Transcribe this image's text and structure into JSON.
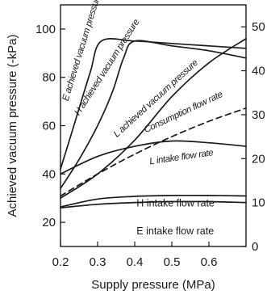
{
  "chart_data": {
    "type": "line",
    "title": "",
    "xlabel": "Supply pressure (MPa)",
    "ylabel": "Achieved vacuum pressure (-kPa)",
    "xlim": [
      0.2,
      0.7
    ],
    "ylim": [
      10,
      110
    ],
    "y2lim": [
      0,
      55
    ],
    "x_ticks": [
      "0.2",
      "0.3",
      "0.4",
      "0.5",
      "0.6"
    ],
    "y_ticks": [
      "20",
      "40",
      "60",
      "80",
      "100"
    ],
    "y2_ticks": [
      "0",
      "10",
      "20",
      "30",
      "40",
      "50"
    ],
    "grid": false,
    "series": [
      {
        "name": "E achieved vacuum pressure",
        "axis": "left",
        "style": "solid",
        "x": [
          0.2,
          0.24,
          0.28,
          0.31,
          0.4,
          0.5,
          0.6,
          0.7
        ],
        "y": [
          42,
          62,
          82,
          95,
          95,
          94,
          93,
          92
        ]
      },
      {
        "name": "H achieved vacuum pressure",
        "axis": "left",
        "style": "solid",
        "x": [
          0.2,
          0.25,
          0.3,
          0.34,
          0.37,
          0.4,
          0.5,
          0.6,
          0.7
        ],
        "y": [
          34,
          46,
          60,
          74,
          88,
          95,
          93,
          91,
          88
        ]
      },
      {
        "name": "L achieved vacuum pressure",
        "axis": "left",
        "style": "solid",
        "x": [
          0.2,
          0.3,
          0.4,
          0.5,
          0.6,
          0.7
        ],
        "y": [
          30,
          40,
          54,
          72,
          86,
          96
        ]
      },
      {
        "name": "Consumption flow rate",
        "axis": "right",
        "style": "dashed",
        "x": [
          0.2,
          0.3,
          0.4,
          0.5,
          0.6,
          0.7
        ],
        "y": [
          11.5,
          16.5,
          21.0,
          25.0,
          28.5,
          31.5
        ]
      },
      {
        "name": "L intake flow rate",
        "axis": "right",
        "style": "solid",
        "x": [
          0.2,
          0.3,
          0.4,
          0.5,
          0.6,
          0.7
        ],
        "y": [
          16.5,
          20.5,
          22.8,
          24.0,
          23.6,
          22.8
        ]
      },
      {
        "name": "H intake flow rate",
        "axis": "right",
        "style": "solid",
        "x": [
          0.2,
          0.3,
          0.4,
          0.5,
          0.6,
          0.7
        ],
        "y": [
          9.0,
          10.8,
          11.4,
          11.6,
          11.6,
          11.5
        ]
      },
      {
        "name": "E intake flow rate",
        "axis": "right",
        "style": "solid",
        "x": [
          0.2,
          0.3,
          0.4,
          0.5,
          0.6,
          0.7
        ],
        "y": [
          8.8,
          9.6,
          10.0,
          10.2,
          10.2,
          10.0
        ]
      }
    ],
    "annotations": [
      {
        "text": "E achieved vacuum pressure",
        "style": "italic",
        "x": 0.22,
        "y": 70
      },
      {
        "text": "H achieved vacuum pressure",
        "style": "italic",
        "x": 0.25,
        "y": 64
      },
      {
        "text": "L achieved vacuum pressure",
        "style": "italic",
        "x": 0.352,
        "y": 55
      },
      {
        "text": "Consumption flow rate",
        "style": "italic",
        "x": 0.43,
        "y": 57
      },
      {
        "text": "L intake flow rate",
        "style": "italic",
        "x": 0.441,
        "y": 44
      },
      {
        "text": "H intake flow rate",
        "style": "upright",
        "x": 0.405,
        "y": 26.5
      },
      {
        "text": "E intake flow rate",
        "style": "upright",
        "x": 0.405,
        "y": 15
      }
    ],
    "colors": {
      "line": "#1a1a1a",
      "axis": "#1a1a1a",
      "background": "#ffffff"
    }
  }
}
